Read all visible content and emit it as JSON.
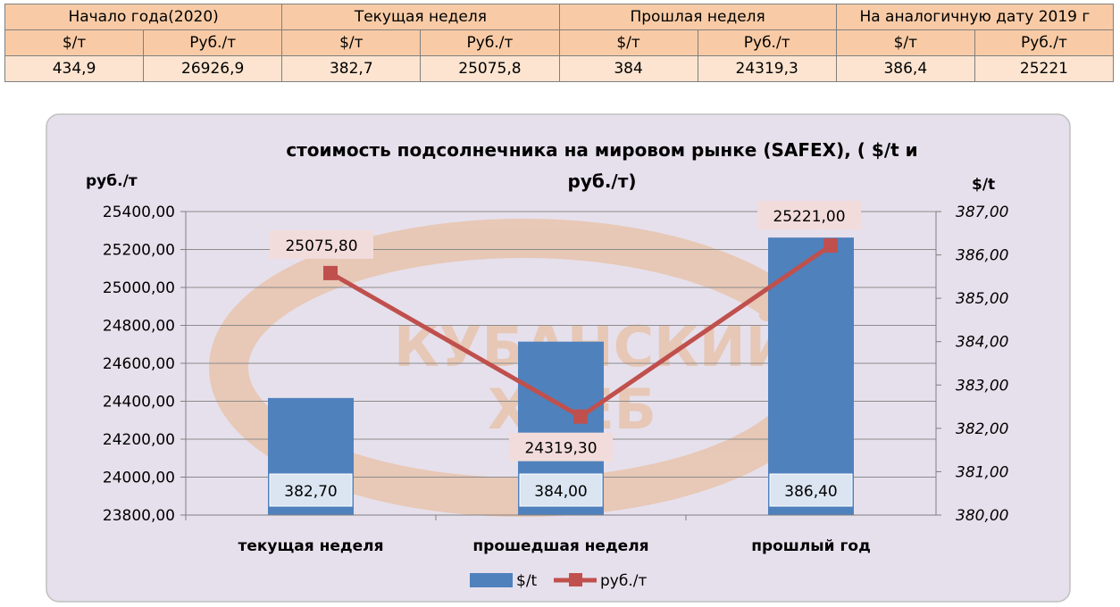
{
  "table": {
    "groups": [
      "Начало года(2020)",
      "Текущая неделя",
      "Прошлая неделя",
      "На аналогичную дату 2019 г"
    ],
    "units": [
      "$/т",
      "Руб./т",
      "$/т",
      "Руб./т",
      "$/т",
      "Руб./т",
      "$/т",
      "Руб./т"
    ],
    "values": [
      "434,9",
      "26926,9",
      "382,7",
      "25075,8",
      "384",
      "24319,3",
      "386,4",
      "25221"
    ]
  },
  "chart_data": {
    "type": "bar",
    "title_line1": "стоимость подсолнечника на мировом рынке (SAFEX), ( $/t и",
    "title_line2": "руб./т)",
    "left_unit": "руб./т",
    "right_unit": "$/t",
    "categories": [
      "текущая  неделя",
      "прошедшая неделя",
      "прошлый  год"
    ],
    "left_axis": {
      "ylim": [
        23800,
        25400
      ],
      "ticks": [
        "23800,00",
        "24000,00",
        "24200,00",
        "24400,00",
        "24600,00",
        "24800,00",
        "25000,00",
        "25200,00",
        "25400,00"
      ]
    },
    "right_axis": {
      "ylim": [
        380,
        387
      ],
      "ticks": [
        "380,00",
        "381,00",
        "382,00",
        "383,00",
        "384,00",
        "385,00",
        "386,00",
        "387,00"
      ]
    },
    "series": [
      {
        "name": "$/t",
        "type": "bar",
        "axis": "right",
        "values": [
          382.7,
          384.0,
          386.4
        ],
        "labels": [
          "382,70",
          "384,00",
          "386,40"
        ],
        "color": "#4f81bd"
      },
      {
        "name": "руб./т",
        "type": "line",
        "axis": "left",
        "values": [
          25075.8,
          24319.3,
          25221.0
        ],
        "labels": [
          "25075,80",
          "24319,30",
          "25221,00"
        ],
        "color": "#c0504d"
      }
    ],
    "grid": true,
    "legend": "bottom",
    "watermark": "КУБАНСКИЙ ХЛЕБ"
  },
  "colors": {
    "plot_bg": "#e6e0ec",
    "header_bg": "#f8cba6",
    "value_bg": "#fce4d0",
    "label_box": "#f2dcdb",
    "watermark": "#e9b48a"
  }
}
